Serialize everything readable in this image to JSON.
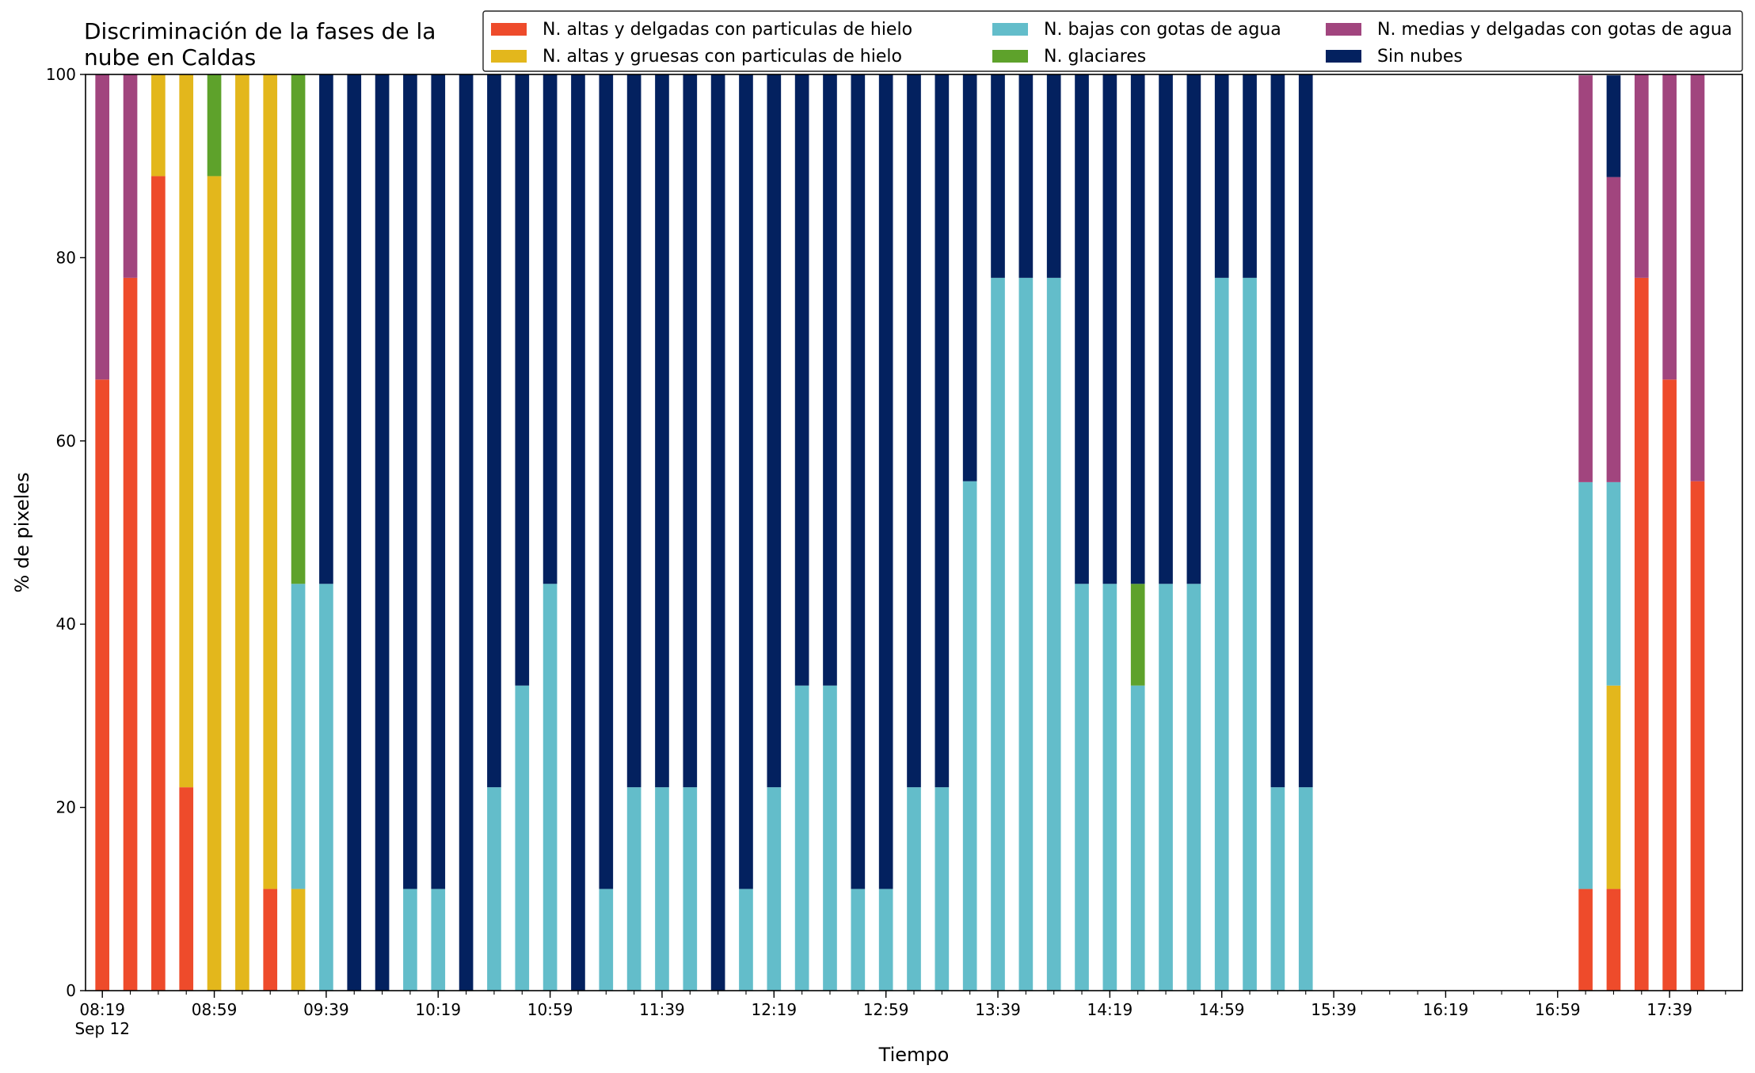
{
  "chart_data": {
    "type": "bar",
    "stacked": true,
    "title_lines": [
      "Discriminación de la fases de la",
      "nube en Caldas"
    ],
    "xlabel": "Tiempo",
    "ylabel": "% de pixeles",
    "ylim": [
      0,
      100
    ],
    "yticks": [
      0,
      20,
      40,
      60,
      80,
      100
    ],
    "xlim": [
      "08:13",
      "18:05"
    ],
    "x_tick_labels": [
      "08:19",
      "08:59",
      "09:39",
      "10:19",
      "10:59",
      "11:39",
      "12:19",
      "12:59",
      "13:39",
      "14:19",
      "14:59",
      "15:39",
      "16:19",
      "16:59",
      "17:39"
    ],
    "x_date_label": "Sep 12",
    "x_minor_tick_step_minutes": 10,
    "legend_location": "top-right",
    "legend": [
      "N. altas y delgadas con particulas de hielo",
      "N. altas y gruesas con particulas de hielo",
      "N. bajas con gotas de agua",
      "N. glaciares",
      "N. medias y delgadas con gotas de agua",
      "Sin nubes"
    ],
    "x": [
      "08:19",
      "08:29",
      "08:39",
      "08:49",
      "08:59",
      "09:09",
      "09:19",
      "09:29",
      "09:39",
      "09:49",
      "09:59",
      "10:09",
      "10:19",
      "10:29",
      "10:39",
      "10:49",
      "10:59",
      "11:09",
      "11:19",
      "11:29",
      "11:39",
      "11:49",
      "11:59",
      "12:09",
      "12:19",
      "12:29",
      "12:39",
      "12:49",
      "12:59",
      "13:09",
      "13:19",
      "13:29",
      "13:39",
      "13:49",
      "13:59",
      "14:09",
      "14:19",
      "14:29",
      "14:39",
      "14:49",
      "14:59",
      "15:09",
      "15:19",
      "15:29",
      "17:09",
      "17:19",
      "17:29",
      "17:39",
      "17:49"
    ],
    "series": [
      {
        "name": "N. altas y delgadas con particulas de hielo",
        "color": "#ee4b2b",
        "values": [
          66.7,
          77.8,
          88.9,
          22.2,
          0,
          0,
          11.1,
          0,
          0,
          0,
          0,
          0,
          0,
          0,
          0,
          0,
          0,
          0,
          0,
          0,
          0,
          0,
          0,
          0,
          0,
          0,
          0,
          0,
          0,
          0,
          0,
          0,
          0,
          0,
          0,
          0,
          0,
          0,
          0,
          0,
          0,
          0,
          0,
          0,
          11.1,
          11.1,
          77.8,
          66.7,
          55.6
        ]
      },
      {
        "name": "N. altas y gruesas con particulas de hielo",
        "color": "#e3b71c",
        "values": [
          0,
          0,
          11.1,
          77.8,
          88.9,
          100,
          88.9,
          11.1,
          0,
          0,
          0,
          0,
          0,
          0,
          0,
          0,
          0,
          0,
          0,
          0,
          0,
          0,
          0,
          0,
          0,
          0,
          0,
          0,
          0,
          0,
          0,
          0,
          0,
          0,
          0,
          0,
          0,
          0,
          0,
          0,
          0,
          0,
          0,
          0,
          0,
          22.2,
          0,
          0,
          0
        ]
      },
      {
        "name": "N. bajas con gotas de agua",
        "color": "#63bdca",
        "values": [
          0,
          0,
          0,
          0,
          0,
          0,
          0,
          33.3,
          44.4,
          0,
          0,
          11.1,
          11.1,
          0,
          22.2,
          33.3,
          44.4,
          0,
          11.1,
          22.2,
          22.2,
          22.2,
          0,
          11.1,
          22.2,
          33.3,
          33.3,
          11.1,
          11.1,
          22.2,
          22.2,
          55.6,
          77.8,
          77.8,
          77.8,
          44.4,
          44.4,
          33.3,
          44.4,
          44.4,
          77.8,
          77.8,
          22.2,
          22.2,
          44.4,
          22.2,
          0,
          0,
          0
        ]
      },
      {
        "name": "N. glaciares",
        "color": "#5ea22b",
        "values": [
          0,
          0,
          0,
          0,
          11.1,
          0,
          0,
          55.6,
          0,
          0,
          0,
          0,
          0,
          0,
          0,
          0,
          0,
          0,
          0,
          0,
          0,
          0,
          0,
          0,
          0,
          0,
          0,
          0,
          0,
          0,
          0,
          0,
          0,
          0,
          0,
          0,
          0,
          11.1,
          0,
          0,
          0,
          0,
          0,
          0,
          0,
          0,
          0,
          0,
          0
        ]
      },
      {
        "name": "N. medias y delgadas con gotas de agua",
        "color": "#a1457e",
        "values": [
          33.3,
          22.2,
          0,
          0,
          0,
          0,
          0,
          0,
          0,
          0,
          0,
          0,
          0,
          0,
          0,
          0,
          0,
          0,
          0,
          0,
          0,
          0,
          0,
          0,
          0,
          0,
          0,
          0,
          0,
          0,
          0,
          0,
          0,
          0,
          0,
          0,
          0,
          0,
          0,
          0,
          0,
          0,
          0,
          0,
          44.4,
          33.3,
          22.2,
          33.3,
          44.4
        ]
      },
      {
        "name": "Sin nubes",
        "color": "#03215f",
        "values": [
          0,
          0,
          0,
          0,
          0,
          0,
          0,
          0,
          55.6,
          100,
          100,
          88.9,
          88.9,
          100,
          77.8,
          66.7,
          55.6,
          100,
          88.9,
          77.8,
          77.8,
          77.8,
          100,
          88.9,
          77.8,
          66.7,
          66.7,
          88.9,
          88.9,
          77.8,
          77.8,
          44.4,
          22.2,
          22.2,
          22.2,
          55.6,
          55.6,
          55.6,
          55.6,
          55.6,
          22.2,
          22.2,
          77.8,
          77.8,
          0,
          11.1,
          0,
          0,
          0
        ]
      }
    ]
  }
}
